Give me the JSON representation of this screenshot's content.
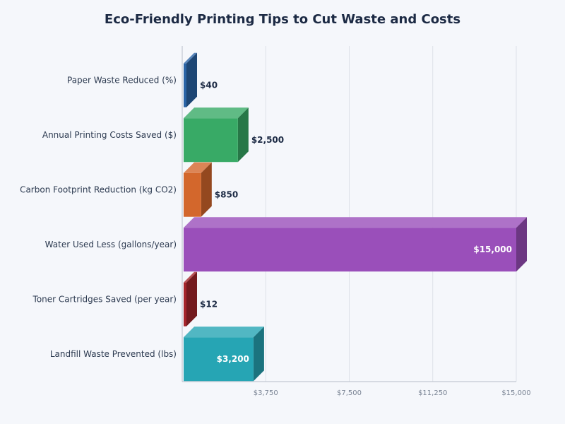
{
  "chart_data": {
    "type": "bar3d-horizontal",
    "title": "Eco-Friendly Printing Tips to Cut Waste and Costs",
    "categories": [
      "Paper Waste Reduced (%)",
      "Annual Printing Costs Saved ($)",
      "Carbon Footprint Reduction (kg CO2)",
      "Water Used Less (gallons/year)",
      "Toner Cartridges Saved (per year)",
      "Landfill Waste Prevented (lbs)"
    ],
    "values": [
      40,
      2500,
      850,
      15000,
      12,
      3200
    ],
    "value_labels": [
      "$40",
      "$2,500",
      "$850",
      "$15,000",
      "$12",
      "$3,200"
    ],
    "colors": [
      "#2a64a6",
      "#38aa66",
      "#d3672c",
      "#9a4fba",
      "#a5252b",
      "#26a5b4"
    ],
    "xlim": [
      0,
      15000
    ],
    "xticks": [
      {
        "value": 3750,
        "label": "$3,750"
      },
      {
        "value": 7500,
        "label": "$7,500"
      },
      {
        "value": 11250,
        "label": "$11,250"
      },
      {
        "value": 15000,
        "label": "$15,000"
      }
    ],
    "grid": true
  }
}
